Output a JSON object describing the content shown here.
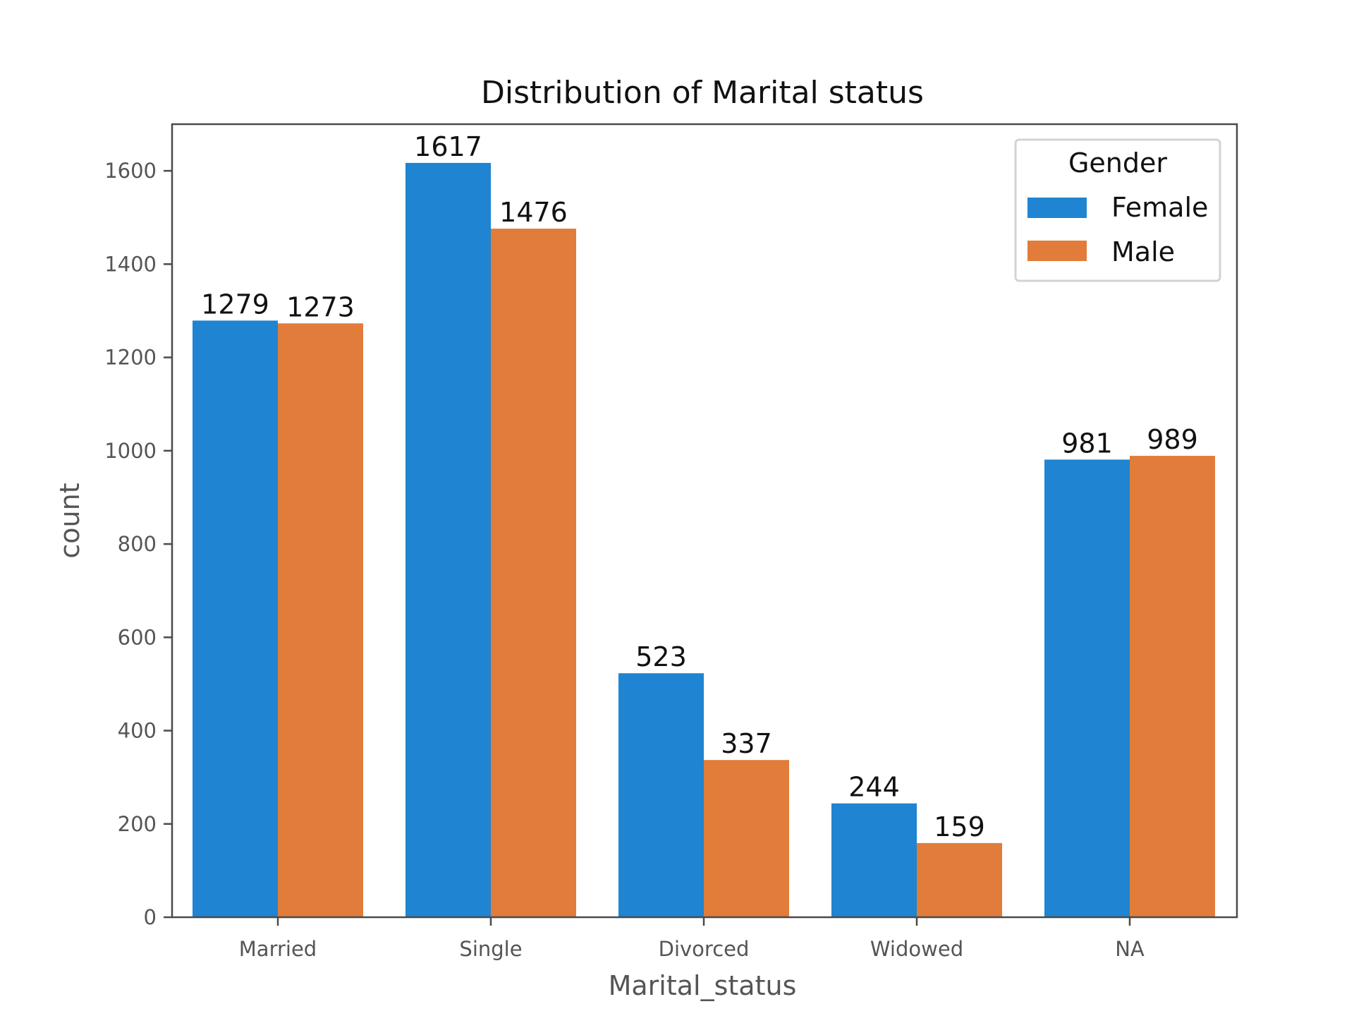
{
  "chart_data": {
    "type": "bar",
    "title": "Distribution of Marital status",
    "xlabel": "Marital_status",
    "ylabel": "count",
    "categories": [
      "Married",
      "Single",
      "Divorced",
      "Widowed",
      "NA"
    ],
    "series": [
      {
        "name": "Female",
        "color": "#1f84d1",
        "values": [
          1279,
          1617,
          523,
          244,
          981
        ]
      },
      {
        "name": "Male",
        "color": "#e17c3b",
        "values": [
          1273,
          1476,
          337,
          159,
          989
        ]
      }
    ],
    "data_labels": [
      [
        "1279",
        "1617",
        "523",
        "244",
        "981"
      ],
      [
        "1273",
        "1476",
        "337",
        "159",
        "989"
      ]
    ],
    "ylim": [
      0,
      1700
    ],
    "yticks": [
      0,
      200,
      400,
      600,
      800,
      1000,
      1200,
      1400,
      1600
    ],
    "ytick_labels": [
      "0",
      "200",
      "400",
      "600",
      "800",
      "1000",
      "1200",
      "1400",
      "1600"
    ],
    "legend": {
      "title": "Gender",
      "placement": "top-right"
    },
    "grid": false
  }
}
